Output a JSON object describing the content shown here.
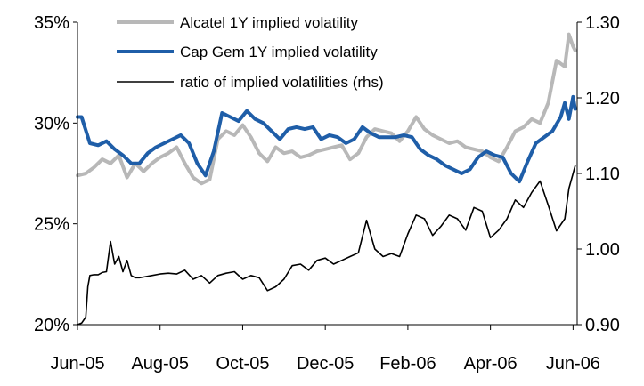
{
  "chart_data": {
    "type": "line",
    "title": "",
    "xlabel": "",
    "ylabel": "",
    "x_tick_labels": [
      "Jun-05",
      "Aug-05",
      "Oct-05",
      "Dec-05",
      "Feb-06",
      "Apr-06",
      "Jun-06"
    ],
    "x_tick_positions": [
      0,
      2,
      4,
      6,
      8,
      10,
      12
    ],
    "xlim": [
      0,
      12.1
    ],
    "y_left": {
      "ylim": [
        20,
        35
      ],
      "ticks": [
        20,
        25,
        30,
        35
      ],
      "tick_labels": [
        "20%",
        "25%",
        "30%",
        "35%"
      ]
    },
    "y_right": {
      "ylim": [
        0.9,
        1.3
      ],
      "ticks": [
        0.9,
        1.0,
        1.1,
        1.2,
        1.3
      ],
      "tick_labels": [
        "0.90",
        "1.00",
        "1.10",
        "1.20",
        "1.30"
      ]
    },
    "grid": false,
    "legend_position": "top-center",
    "series": [
      {
        "name": "Alcatel 1Y implied volatility",
        "axis": "left",
        "color": "#b8b8b8",
        "x": [
          0,
          0.2,
          0.4,
          0.6,
          0.8,
          1.0,
          1.2,
          1.4,
          1.6,
          1.8,
          2.0,
          2.2,
          2.4,
          2.6,
          2.8,
          3.0,
          3.2,
          3.4,
          3.6,
          3.8,
          4.0,
          4.2,
          4.4,
          4.6,
          4.8,
          5.0,
          5.2,
          5.4,
          5.6,
          5.8,
          6.0,
          6.2,
          6.4,
          6.6,
          6.8,
          7.0,
          7.2,
          7.4,
          7.6,
          7.8,
          8.0,
          8.2,
          8.4,
          8.6,
          8.8,
          9.0,
          9.2,
          9.4,
          9.6,
          9.8,
          10.0,
          10.2,
          10.4,
          10.6,
          10.8,
          11.0,
          11.2,
          11.4,
          11.6,
          11.8,
          11.9,
          12.0,
          12.05
        ],
        "values": [
          27.4,
          27.5,
          27.8,
          28.2,
          28.0,
          28.4,
          27.3,
          28.0,
          27.6,
          28.0,
          28.3,
          28.5,
          28.8,
          28.0,
          27.3,
          27.0,
          27.2,
          29.2,
          29.6,
          29.4,
          29.9,
          29.3,
          28.5,
          28.1,
          28.8,
          28.5,
          28.6,
          28.3,
          28.4,
          28.6,
          28.7,
          28.8,
          28.9,
          28.2,
          28.5,
          29.3,
          29.7,
          29.6,
          29.5,
          29.1,
          29.6,
          30.3,
          29.7,
          29.4,
          29.2,
          29.0,
          29.1,
          28.8,
          28.7,
          28.6,
          28.3,
          28.1,
          28.8,
          29.6,
          29.8,
          30.2,
          30.0,
          31.0,
          33.1,
          32.8,
          34.4,
          33.8,
          33.6
        ]
      },
      {
        "name": "Cap Gem 1Y implied volatility",
        "axis": "left",
        "color": "#1f5ea8",
        "x": [
          0,
          0.1,
          0.3,
          0.5,
          0.7,
          0.9,
          1.1,
          1.3,
          1.5,
          1.7,
          1.9,
          2.1,
          2.3,
          2.5,
          2.7,
          2.9,
          3.1,
          3.3,
          3.5,
          3.7,
          3.9,
          4.1,
          4.3,
          4.5,
          4.7,
          4.9,
          5.1,
          5.3,
          5.5,
          5.7,
          5.9,
          6.1,
          6.3,
          6.5,
          6.7,
          6.9,
          7.1,
          7.3,
          7.5,
          7.7,
          7.9,
          8.1,
          8.3,
          8.5,
          8.7,
          8.9,
          9.1,
          9.3,
          9.5,
          9.7,
          9.9,
          10.1,
          10.3,
          10.5,
          10.7,
          10.9,
          11.1,
          11.3,
          11.5,
          11.7,
          11.8,
          11.9,
          12.0,
          12.05
        ],
        "values": [
          30.3,
          30.3,
          29.0,
          28.9,
          29.1,
          28.7,
          28.4,
          28.0,
          28.0,
          28.5,
          28.8,
          29.0,
          29.2,
          29.4,
          29.0,
          28.0,
          27.4,
          28.6,
          30.5,
          30.3,
          30.1,
          30.6,
          30.2,
          30.0,
          29.6,
          29.2,
          29.7,
          29.8,
          29.7,
          29.8,
          29.2,
          29.4,
          29.3,
          29.0,
          29.2,
          29.8,
          29.5,
          29.3,
          29.3,
          29.3,
          29.4,
          29.3,
          28.7,
          28.4,
          28.2,
          27.9,
          27.7,
          27.5,
          27.7,
          28.3,
          28.6,
          28.4,
          28.3,
          27.5,
          27.1,
          28.1,
          29.0,
          29.3,
          29.6,
          30.3,
          31.0,
          30.2,
          31.3,
          30.7
        ]
      },
      {
        "name": "ratio of implied volatilities (rhs)",
        "axis": "right",
        "color": "#000000",
        "x": [
          0,
          0.1,
          0.2,
          0.25,
          0.3,
          0.4,
          0.5,
          0.6,
          0.7,
          0.8,
          0.9,
          1.0,
          1.1,
          1.2,
          1.3,
          1.4,
          1.5,
          1.6,
          1.8,
          2.0,
          2.2,
          2.4,
          2.6,
          2.8,
          3.0,
          3.2,
          3.4,
          3.6,
          3.8,
          4.0,
          4.2,
          4.4,
          4.6,
          4.8,
          5.0,
          5.2,
          5.4,
          5.6,
          5.8,
          6.0,
          6.2,
          6.4,
          6.6,
          6.8,
          7.0,
          7.2,
          7.4,
          7.6,
          7.8,
          8.0,
          8.2,
          8.4,
          8.6,
          8.8,
          9.0,
          9.2,
          9.4,
          9.6,
          9.8,
          10.0,
          10.2,
          10.4,
          10.6,
          10.8,
          11.0,
          11.2,
          11.4,
          11.6,
          11.8,
          11.9,
          12.0,
          12.05
        ],
        "values": [
          0.9,
          0.902,
          0.91,
          0.95,
          0.965,
          0.966,
          0.966,
          0.969,
          0.97,
          1.01,
          0.98,
          0.99,
          0.97,
          0.985,
          0.965,
          0.962,
          0.962,
          0.963,
          0.965,
          0.967,
          0.968,
          0.967,
          0.972,
          0.96,
          0.965,
          0.955,
          0.965,
          0.968,
          0.97,
          0.96,
          0.965,
          0.962,
          0.945,
          0.95,
          0.96,
          0.978,
          0.98,
          0.972,
          0.985,
          0.988,
          0.98,
          0.985,
          0.99,
          0.995,
          1.038,
          1.0,
          0.99,
          0.994,
          0.99,
          1.02,
          1.045,
          1.04,
          1.018,
          1.03,
          1.045,
          1.04,
          1.025,
          1.055,
          1.05,
          1.015,
          1.025,
          1.04,
          1.065,
          1.055,
          1.075,
          1.09,
          1.058,
          1.024,
          1.04,
          1.08,
          1.1,
          1.11
        ]
      }
    ]
  }
}
